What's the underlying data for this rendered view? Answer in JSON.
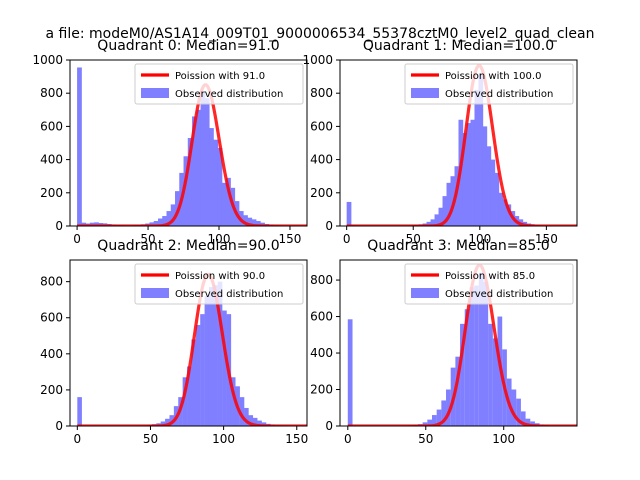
{
  "figure": {
    "suptitle": "a file: modeM0/AS1A14_009T01_9000006534_55378cztM0_level2_quad_clean"
  },
  "colors": {
    "histogram": "#7f7fff",
    "poisson": "#ff0000",
    "poisson_alpha": 0.55,
    "axes_edge": "#000000",
    "legend_edge": "#cccccc"
  },
  "chart_data": [
    {
      "type": "bar",
      "title": "Quadrant 0: Median=91.0",
      "median": 91.0,
      "xlim": [
        -5,
        162
      ],
      "ylim": [
        0,
        1000
      ],
      "xticks": [
        0,
        50,
        100,
        150
      ],
      "yticks": [
        0,
        200,
        400,
        600,
        800,
        1000
      ],
      "legend": {
        "position": "upper right",
        "entries": [
          "Poission with 91.0",
          "Observed distribution"
        ]
      },
      "bin_width": 3.2,
      "histogram": {
        "bins": [
          0,
          3,
          6,
          9,
          12,
          15,
          18,
          21,
          24,
          27,
          30,
          33,
          36,
          39,
          42,
          45,
          48,
          51,
          54,
          57,
          60,
          63,
          66,
          69,
          72,
          75,
          78,
          81,
          84,
          87,
          90,
          93,
          96,
          99,
          102,
          105,
          108,
          111,
          114,
          117,
          120,
          123,
          126,
          129,
          132,
          135,
          138,
          141,
          144,
          147,
          150,
          153
        ],
        "counts": [
          955,
          20,
          15,
          20,
          22,
          18,
          16,
          12,
          8,
          6,
          5,
          4,
          4,
          5,
          6,
          10,
          15,
          22,
          30,
          45,
          60,
          90,
          130,
          210,
          320,
          420,
          530,
          660,
          700,
          810,
          770,
          590,
          520,
          470,
          260,
          290,
          230,
          150,
          90,
          65,
          50,
          40,
          30,
          20,
          12,
          8,
          5,
          4,
          3,
          2,
          1,
          1
        ]
      },
      "poisson_lambda": 91.0
    },
    {
      "type": "bar",
      "title": "Quadrant 1: Median=100.0",
      "median": 100.0,
      "xlim": [
        -5,
        173
      ],
      "ylim": [
        0,
        1000
      ],
      "xticks": [
        0,
        50,
        100,
        150
      ],
      "yticks": [
        0,
        200,
        400,
        600,
        800,
        1000
      ],
      "legend": {
        "position": "upper right",
        "entries": [
          "Poission with 100.0",
          "Observed distribution"
        ]
      },
      "bin_width": 3.4,
      "histogram": {
        "bins": [
          0,
          3,
          6,
          9,
          12,
          15,
          18,
          21,
          24,
          27,
          30,
          33,
          36,
          39,
          42,
          45,
          48,
          51,
          54,
          57,
          60,
          63,
          66,
          69,
          72,
          75,
          78,
          81,
          84,
          87,
          90,
          93,
          96,
          99,
          102,
          105,
          108,
          111,
          114,
          117,
          120,
          123,
          126,
          129,
          132,
          135,
          138,
          141,
          144,
          147,
          150,
          153
        ],
        "counts": [
          145,
          5,
          4,
          3,
          3,
          2,
          2,
          2,
          1,
          1,
          1,
          1,
          1,
          1,
          1,
          2,
          4,
          6,
          10,
          15,
          25,
          40,
          70,
          110,
          180,
          260,
          300,
          360,
          640,
          560,
          620,
          640,
          820,
          920,
          600,
          480,
          400,
          320,
          200,
          160,
          130,
          90,
          60,
          40,
          25,
          15,
          10,
          6,
          4,
          3,
          2,
          1
        ]
      },
      "poisson_lambda": 100.0
    },
    {
      "type": "bar",
      "title": "Quadrant 2: Median=90.0",
      "median": 90.0,
      "xlim": [
        -5,
        157
      ],
      "ylim": [
        0,
        920
      ],
      "xticks": [
        0,
        50,
        100,
        150
      ],
      "yticks": [
        0,
        200,
        400,
        600,
        800
      ],
      "legend": {
        "position": "upper right",
        "entries": [
          "Poission with 90.0",
          "Observed distribution"
        ]
      },
      "bin_width": 3.0,
      "histogram": {
        "bins": [
          0,
          3,
          6,
          9,
          12,
          15,
          18,
          21,
          24,
          27,
          30,
          33,
          36,
          39,
          42,
          45,
          48,
          51,
          54,
          57,
          60,
          63,
          66,
          69,
          72,
          75,
          78,
          81,
          84,
          87,
          90,
          93,
          96,
          99,
          102,
          105,
          108,
          111,
          114,
          117,
          120,
          123,
          126,
          129,
          132,
          135,
          138,
          141,
          144,
          147,
          150
        ],
        "counts": [
          160,
          3,
          3,
          2,
          2,
          2,
          1,
          1,
          1,
          1,
          1,
          1,
          2,
          2,
          3,
          4,
          6,
          10,
          15,
          25,
          40,
          60,
          110,
          160,
          270,
          330,
          480,
          560,
          620,
          720,
          770,
          780,
          800,
          640,
          620,
          270,
          220,
          160,
          100,
          60,
          45,
          30,
          20,
          12,
          8,
          5,
          4,
          3,
          2,
          1,
          1
        ]
      },
      "poisson_lambda": 90.0
    },
    {
      "type": "bar",
      "title": "Quadrant 3: Median=85.0",
      "median": 85.0,
      "xlim": [
        -5,
        147
      ],
      "ylim": [
        0,
        910
      ],
      "xticks": [
        0,
        50,
        100
      ],
      "yticks": [
        0,
        200,
        400,
        600,
        800
      ],
      "legend": {
        "position": "upper right",
        "entries": [
          "Poission with 85.0",
          "Observed distribution"
        ]
      },
      "bin_width": 2.9,
      "histogram": {
        "bins": [
          0,
          3,
          6,
          9,
          12,
          15,
          18,
          21,
          24,
          27,
          30,
          33,
          36,
          39,
          42,
          45,
          48,
          51,
          54,
          57,
          60,
          63,
          66,
          69,
          72,
          75,
          78,
          81,
          84,
          87,
          90,
          93,
          96,
          99,
          102,
          105,
          108,
          111,
          114,
          117,
          120,
          123,
          126,
          129,
          132,
          135,
          138,
          141
        ],
        "counts": [
          585,
          2,
          2,
          2,
          1,
          1,
          1,
          1,
          1,
          1,
          1,
          2,
          3,
          4,
          6,
          10,
          20,
          35,
          60,
          90,
          140,
          200,
          320,
          380,
          560,
          640,
          760,
          770,
          840,
          790,
          560,
          480,
          600,
          420,
          260,
          200,
          150,
          80,
          40,
          25,
          15,
          8,
          5,
          3,
          2,
          1,
          1,
          1
        ]
      },
      "poisson_lambda": 85.0
    }
  ]
}
